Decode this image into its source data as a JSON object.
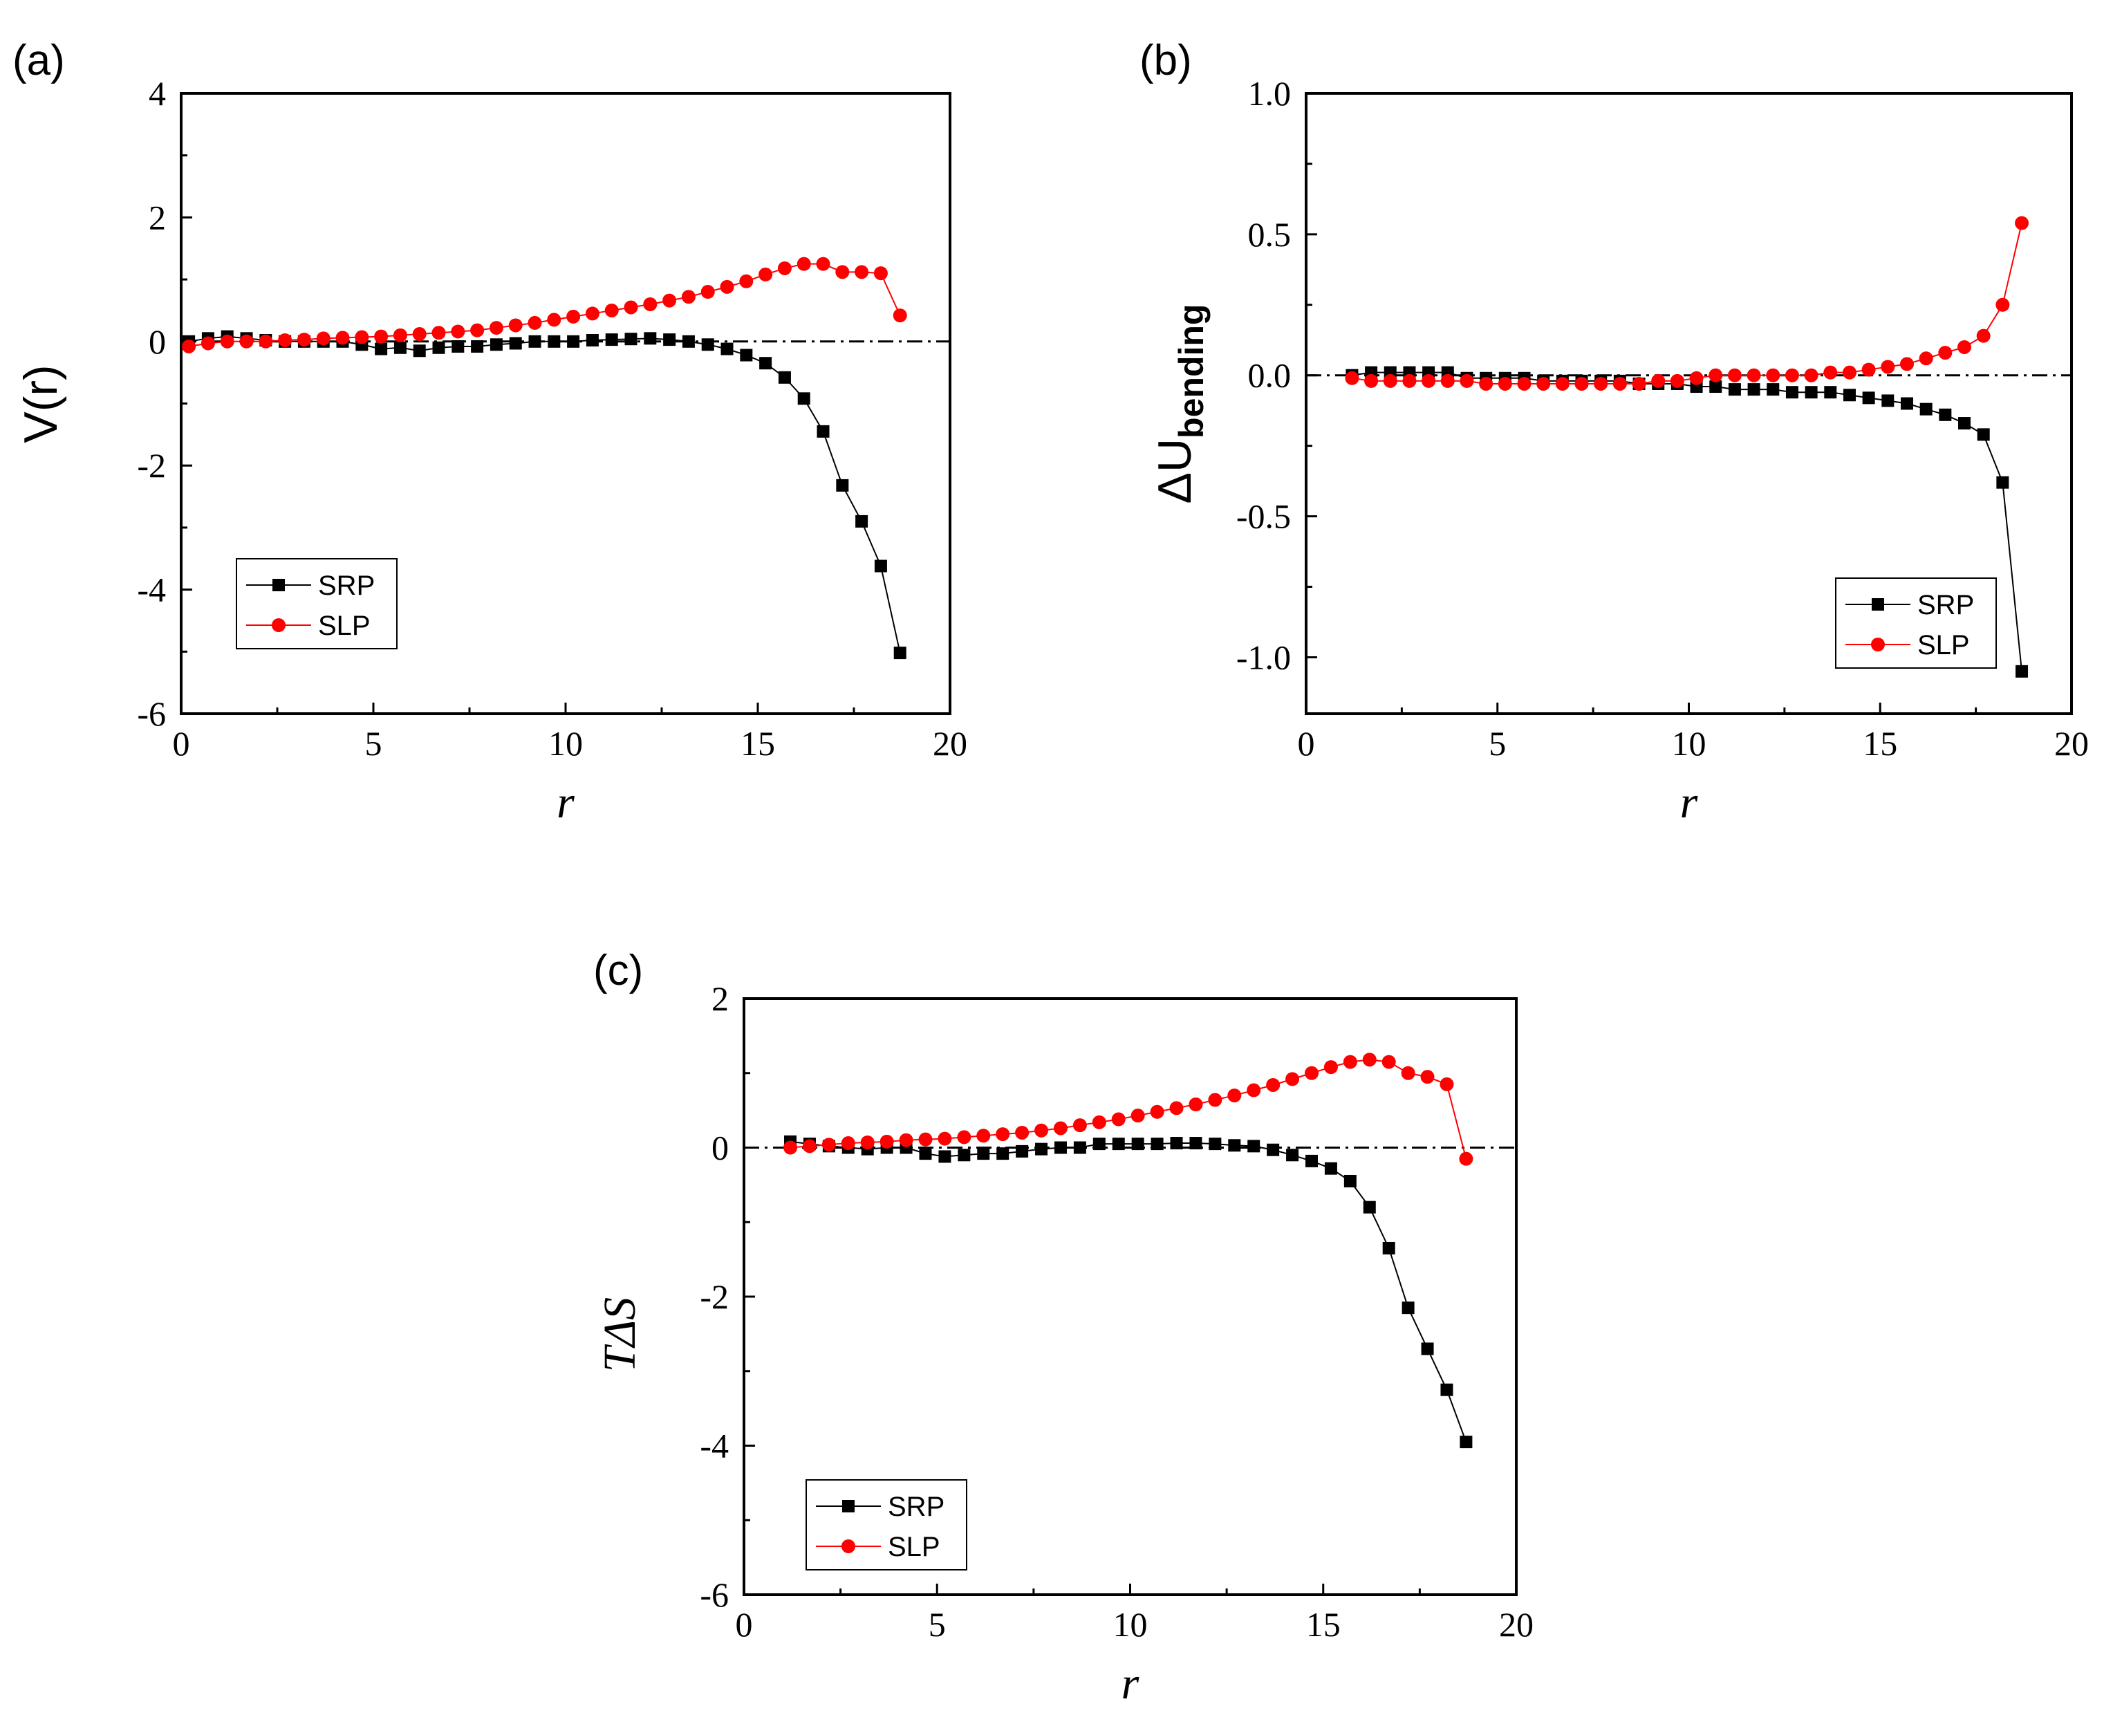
{
  "figure": {
    "title": ""
  },
  "colors": {
    "SRP": "#000000",
    "SLP": "#ff0000",
    "axis": "#000000"
  },
  "chart_data": [
    {
      "type": "line",
      "panel_label": "(a)",
      "xlabel": "r",
      "ylabel": "V(r)",
      "xlim": [
        0,
        20
      ],
      "ylim": [
        -6,
        4
      ],
      "xticks": [
        0,
        5,
        10,
        15,
        20
      ],
      "yticks": [
        -6,
        -4,
        -2,
        0,
        2,
        4
      ],
      "xtick_labels": [
        "0",
        "5",
        "10",
        "15",
        "20"
      ],
      "ytick_labels": [
        "-6",
        "-4",
        "-2",
        "0",
        "2",
        "4"
      ],
      "reference_line": {
        "y": 0,
        "style": "dash-dot"
      },
      "legend": {
        "position": "lower-left",
        "entries": [
          "SRP",
          "SLP"
        ]
      },
      "series": [
        {
          "name": "SRP",
          "marker": "square",
          "color": "#000000",
          "x": [
            0.2,
            0.7,
            1.2,
            1.7,
            2.2,
            2.7,
            3.2,
            3.7,
            4.2,
            4.7,
            5.2,
            5.7,
            6.2,
            6.7,
            7.2,
            7.7,
            8.2,
            8.7,
            9.2,
            9.7,
            10.2,
            10.7,
            11.2,
            11.7,
            12.2,
            12.7,
            13.2,
            13.7,
            14.2,
            14.7,
            15.2,
            15.7,
            16.2,
            16.7,
            17.2,
            17.7,
            18.2,
            18.7
          ],
          "y": [
            0.0,
            0.05,
            0.08,
            0.05,
            0.02,
            0.0,
            0.0,
            0.0,
            0.0,
            -0.05,
            -0.12,
            -0.1,
            -0.15,
            -0.1,
            -0.08,
            -0.08,
            -0.05,
            -0.03,
            0.0,
            0.0,
            0.0,
            0.02,
            0.03,
            0.04,
            0.05,
            0.03,
            0.0,
            -0.05,
            -0.12,
            -0.22,
            -0.35,
            -0.58,
            -0.92,
            -1.45,
            -2.32,
            -2.9,
            -3.62,
            -5.02
          ]
        },
        {
          "name": "SLP",
          "marker": "circle",
          "color": "#ff0000",
          "x": [
            0.2,
            0.7,
            1.2,
            1.7,
            2.2,
            2.7,
            3.2,
            3.7,
            4.2,
            4.7,
            5.2,
            5.7,
            6.2,
            6.7,
            7.2,
            7.7,
            8.2,
            8.7,
            9.2,
            9.7,
            10.2,
            10.7,
            11.2,
            11.7,
            12.2,
            12.7,
            13.2,
            13.7,
            14.2,
            14.7,
            15.2,
            15.7,
            16.2,
            16.7,
            17.2,
            17.7,
            18.2,
            18.7
          ],
          "y": [
            -0.08,
            -0.03,
            0.0,
            0.0,
            0.0,
            0.02,
            0.03,
            0.05,
            0.06,
            0.07,
            0.08,
            0.1,
            0.12,
            0.14,
            0.16,
            0.18,
            0.22,
            0.26,
            0.3,
            0.35,
            0.4,
            0.45,
            0.5,
            0.55,
            0.6,
            0.66,
            0.72,
            0.8,
            0.88,
            0.97,
            1.08,
            1.18,
            1.25,
            1.25,
            1.12,
            1.12,
            1.1,
            0.42
          ]
        }
      ]
    },
    {
      "type": "line",
      "panel_label": "(b)",
      "xlabel": "r",
      "ylabel_main": "ΔU",
      "ylabel_sub": "bending",
      "xlim": [
        0,
        20
      ],
      "ylim": [
        -1.2,
        1.0
      ],
      "xticks": [
        0,
        5,
        10,
        15,
        20
      ],
      "yticks": [
        -1.0,
        -0.5,
        0.0,
        0.5,
        1.0
      ],
      "xtick_labels": [
        "0",
        "5",
        "10",
        "15",
        "20"
      ],
      "ytick_labels": [
        "-1.0",
        "-0.5",
        "0.0",
        "0.5",
        "1.0"
      ],
      "reference_line": {
        "y": 0,
        "style": "dash-dot"
      },
      "legend": {
        "position": "lower-right",
        "entries": [
          "SRP",
          "SLP"
        ]
      },
      "series": [
        {
          "name": "SRP",
          "marker": "square",
          "color": "#000000",
          "x": [
            1.2,
            1.7,
            2.2,
            2.7,
            3.2,
            3.7,
            4.2,
            4.7,
            5.2,
            5.7,
            6.2,
            6.7,
            7.2,
            7.7,
            8.2,
            8.7,
            9.2,
            9.7,
            10.2,
            10.7,
            11.2,
            11.7,
            12.2,
            12.7,
            13.2,
            13.7,
            14.2,
            14.7,
            15.2,
            15.7,
            16.2,
            16.7,
            17.2,
            17.7,
            18.2,
            18.7
          ],
          "y": [
            0.0,
            0.01,
            0.01,
            0.01,
            0.01,
            0.01,
            -0.01,
            -0.01,
            -0.01,
            -0.01,
            -0.02,
            -0.02,
            -0.02,
            -0.02,
            -0.02,
            -0.03,
            -0.03,
            -0.03,
            -0.04,
            -0.04,
            -0.05,
            -0.05,
            -0.05,
            -0.06,
            -0.06,
            -0.06,
            -0.07,
            -0.08,
            -0.09,
            -0.1,
            -0.12,
            -0.14,
            -0.17,
            -0.21,
            -0.38,
            -1.05
          ]
        },
        {
          "name": "SLP",
          "marker": "circle",
          "color": "#ff0000",
          "x": [
            1.2,
            1.7,
            2.2,
            2.7,
            3.2,
            3.7,
            4.2,
            4.7,
            5.2,
            5.7,
            6.2,
            6.7,
            7.2,
            7.7,
            8.2,
            8.7,
            9.2,
            9.7,
            10.2,
            10.7,
            11.2,
            11.7,
            12.2,
            12.7,
            13.2,
            13.7,
            14.2,
            14.7,
            15.2,
            15.7,
            16.2,
            16.7,
            17.2,
            17.7,
            18.2,
            18.7
          ],
          "y": [
            -0.01,
            -0.02,
            -0.02,
            -0.02,
            -0.02,
            -0.02,
            -0.02,
            -0.03,
            -0.03,
            -0.03,
            -0.03,
            -0.03,
            -0.03,
            -0.03,
            -0.03,
            -0.03,
            -0.02,
            -0.02,
            -0.01,
            0.0,
            0.0,
            0.0,
            0.0,
            0.0,
            0.0,
            0.01,
            0.01,
            0.02,
            0.03,
            0.04,
            0.06,
            0.08,
            0.1,
            0.14,
            0.25,
            0.54
          ]
        }
      ]
    },
    {
      "type": "line",
      "panel_label": "(c)",
      "xlabel": "r",
      "ylabel": "TΔS",
      "xlim": [
        0,
        20
      ],
      "ylim": [
        -6,
        2
      ],
      "xticks": [
        0,
        5,
        10,
        15,
        20
      ],
      "yticks": [
        -6,
        -4,
        -2,
        0,
        2
      ],
      "xtick_labels": [
        "0",
        "5",
        "10",
        "15",
        "20"
      ],
      "ytick_labels": [
        "-6",
        "-4",
        "-2",
        "0",
        "2"
      ],
      "reference_line": {
        "y": 0,
        "style": "dash-dot"
      },
      "legend": {
        "position": "lower-left",
        "entries": [
          "SRP",
          "SLP"
        ]
      },
      "series": [
        {
          "name": "SRP",
          "marker": "square",
          "color": "#000000",
          "x": [
            1.2,
            1.7,
            2.2,
            2.7,
            3.2,
            3.7,
            4.2,
            4.7,
            5.2,
            5.7,
            6.2,
            6.7,
            7.2,
            7.7,
            8.2,
            8.7,
            9.2,
            9.7,
            10.2,
            10.7,
            11.2,
            11.7,
            12.2,
            12.7,
            13.2,
            13.7,
            14.2,
            14.7,
            15.2,
            15.7,
            16.2,
            16.7,
            17.2,
            17.7,
            18.2,
            18.7
          ],
          "y": [
            0.08,
            0.05,
            0.02,
            0.0,
            -0.02,
            0.0,
            0.0,
            -0.08,
            -0.12,
            -0.1,
            -0.08,
            -0.08,
            -0.05,
            -0.02,
            0.0,
            0.0,
            0.05,
            0.05,
            0.05,
            0.05,
            0.06,
            0.06,
            0.05,
            0.03,
            0.02,
            -0.03,
            -0.1,
            -0.18,
            -0.28,
            -0.45,
            -0.8,
            -1.35,
            -2.15,
            -2.7,
            -3.25,
            -3.95
          ]
        },
        {
          "name": "SLP",
          "marker": "circle",
          "color": "#ff0000",
          "x": [
            1.2,
            1.7,
            2.2,
            2.7,
            3.2,
            3.7,
            4.2,
            4.7,
            5.2,
            5.7,
            6.2,
            6.7,
            7.2,
            7.7,
            8.2,
            8.7,
            9.2,
            9.7,
            10.2,
            10.7,
            11.2,
            11.7,
            12.2,
            12.7,
            13.2,
            13.7,
            14.2,
            14.7,
            15.2,
            15.7,
            16.2,
            16.7,
            17.2,
            17.7,
            18.2,
            18.7
          ],
          "y": [
            0.0,
            0.02,
            0.04,
            0.06,
            0.07,
            0.08,
            0.1,
            0.11,
            0.12,
            0.14,
            0.16,
            0.18,
            0.2,
            0.23,
            0.26,
            0.3,
            0.34,
            0.38,
            0.43,
            0.48,
            0.53,
            0.58,
            0.64,
            0.7,
            0.77,
            0.84,
            0.92,
            1.0,
            1.08,
            1.15,
            1.18,
            1.15,
            1.0,
            0.95,
            0.85,
            -0.15
          ]
        }
      ]
    }
  ]
}
